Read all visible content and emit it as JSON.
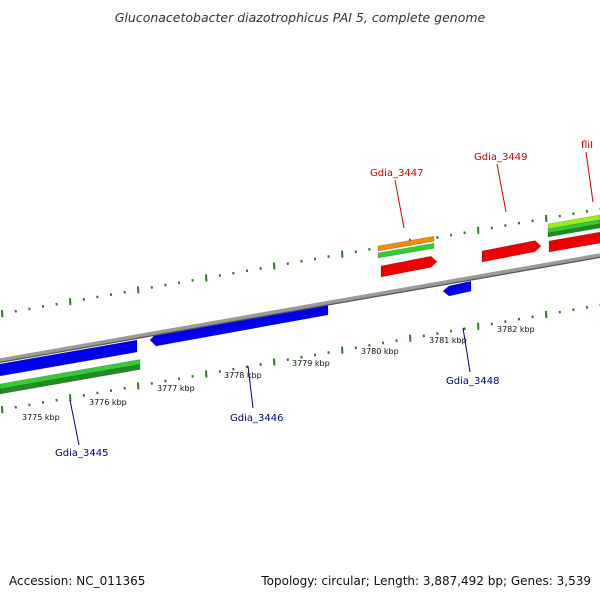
{
  "title": "Gluconacetobacter diazotrophicus PAI 5, complete genome",
  "footer": {
    "accession": "Accession: NC_011365",
    "topology": "Topology: circular; Length: 3,887,492 bp; Genes: 3,539"
  },
  "colors": {
    "backbone": "#8a8a8a",
    "ticks": "#2e7d1f",
    "reverse_strand_gene": "#0000ee",
    "forward_strand_gene": "#ee0000",
    "reverse_label": "#00008b",
    "forward_label": "#cc0000",
    "orange": "#f28c00",
    "green": "#33cc33",
    "lime": "#99ee22",
    "darkgreen": "#228b22"
  },
  "kbp_labels": [
    "3775 kbp",
    "3776 kbp",
    "3777 kbp",
    "3778 kbp",
    "3779 kbp",
    "3780 kbp",
    "3781 kbp",
    "3782 kbp"
  ],
  "genes": [
    {
      "label": "Gdia_3445",
      "strand": "reverse"
    },
    {
      "label": "Gdia_3446",
      "strand": "reverse"
    },
    {
      "label": "Gdia_3447",
      "strand": "forward"
    },
    {
      "label": "Gdia_3448",
      "strand": "reverse"
    },
    {
      "label": "Gdia_3449",
      "strand": "forward"
    },
    {
      "label": "fliI",
      "strand": "forward"
    }
  ]
}
